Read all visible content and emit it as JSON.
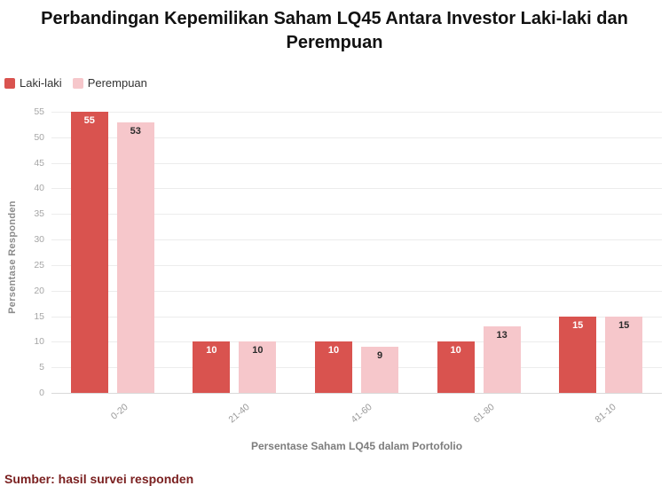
{
  "title": "Perbandingan Kepemilikan Saham LQ45 Antara Investor Laki-laki dan Perempuan",
  "legend": [
    {
      "label": "Laki-laki",
      "color": "#d9534f"
    },
    {
      "label": "Perempuan",
      "color": "#f6c7cb"
    }
  ],
  "chart_data": {
    "type": "bar",
    "categories": [
      "0-20",
      "21-40",
      "41-60",
      "61-80",
      "81-10"
    ],
    "series": [
      {
        "name": "Laki-laki",
        "color": "#d9534f",
        "label_color": "#ffffff",
        "values": [
          55,
          10,
          10,
          10,
          15
        ]
      },
      {
        "name": "Perempuan",
        "color": "#f6c7cb",
        "label_color": "#2b2b2b",
        "values": [
          53,
          10,
          9,
          13,
          15
        ]
      }
    ],
    "xlabel": "Persentase Saham LQ45 dalam Portofolio",
    "ylabel": "Persentase Responden",
    "ylim": [
      0,
      55
    ],
    "yticks": [
      0,
      5,
      10,
      15,
      20,
      25,
      30,
      35,
      40,
      45,
      50,
      55
    ],
    "grid": true,
    "legend_position": "top-left",
    "bar_labels": true
  },
  "caption_clipped": "Sumber: hasil survei responden"
}
